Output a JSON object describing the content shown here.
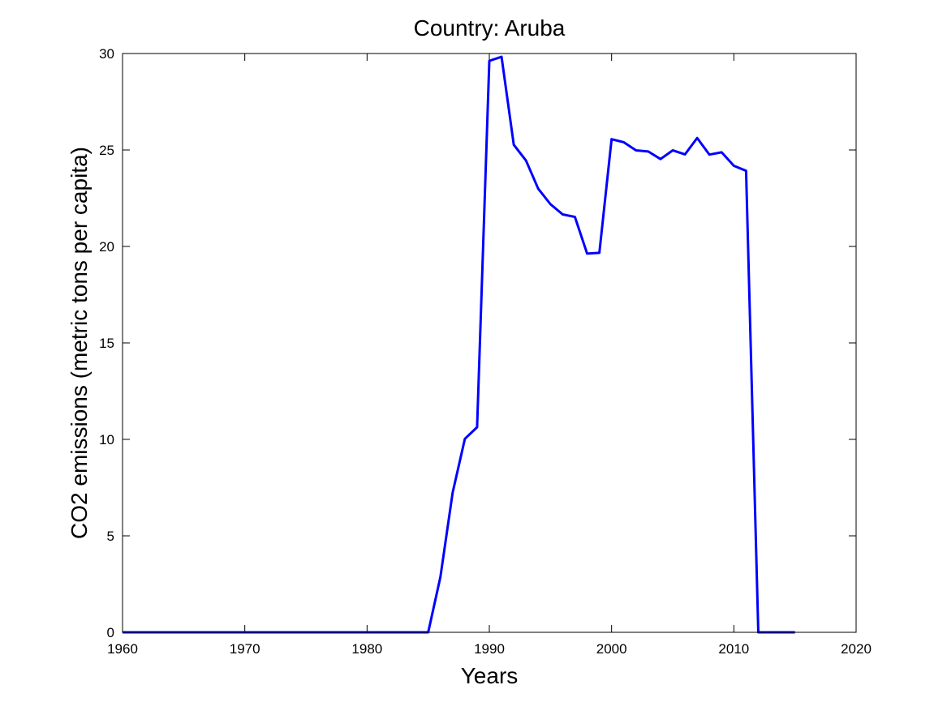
{
  "chart_data": {
    "type": "line",
    "title": "Country: Aruba",
    "xlabel": "Years",
    "ylabel": "CO2 emissions (metric tons per capita)",
    "xlim": [
      1960,
      2020
    ],
    "ylim": [
      0,
      30
    ],
    "xticks": [
      1960,
      1970,
      1980,
      1990,
      2000,
      2010,
      2020
    ],
    "yticks": [
      0,
      5,
      10,
      15,
      20,
      25,
      30
    ],
    "grid": false,
    "line_color": "#0000ff",
    "series": [
      {
        "x": [
          1960,
          1961,
          1962,
          1963,
          1964,
          1965,
          1966,
          1967,
          1968,
          1969,
          1970,
          1971,
          1972,
          1973,
          1974,
          1975,
          1976,
          1977,
          1978,
          1979,
          1980,
          1981,
          1982,
          1983,
          1984,
          1985,
          1986,
          1987,
          1988,
          1989,
          1990,
          1991,
          1992,
          1993,
          1994,
          1995,
          1996,
          1997,
          1998,
          1999,
          2000,
          2001,
          2002,
          2003,
          2004,
          2005,
          2006,
          2007,
          2008,
          2009,
          2010,
          2011,
          2012,
          2013,
          2014,
          2015
        ],
        "y": [
          0,
          0,
          0,
          0,
          0,
          0,
          0,
          0,
          0,
          0,
          0,
          0,
          0,
          0,
          0,
          0,
          0,
          0,
          0,
          0,
          0,
          0,
          0,
          0,
          0,
          0,
          2.87,
          7.24,
          10.03,
          10.63,
          29.62,
          29.83,
          25.27,
          24.45,
          22.99,
          22.19,
          21.66,
          21.53,
          19.63,
          19.67,
          25.56,
          25.4,
          24.98,
          24.92,
          24.53,
          24.98,
          24.77,
          25.62,
          24.76,
          24.88,
          24.18,
          23.92,
          0,
          0,
          0,
          0
        ]
      }
    ]
  }
}
